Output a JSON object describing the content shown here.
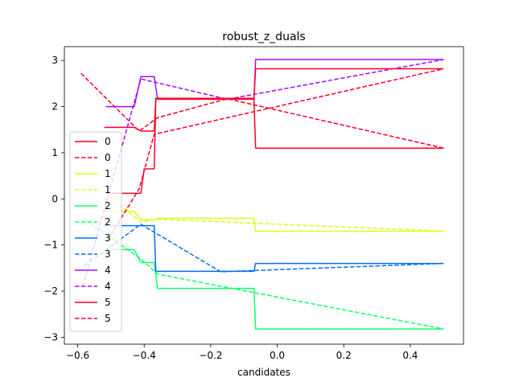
{
  "chart_data": {
    "type": "line",
    "title": "robust_z_duals",
    "xlabel": "candidates",
    "ylabel": "",
    "xlim": [
      -0.64,
      0.56
    ],
    "ylim": [
      -3.15,
      3.3
    ],
    "xticks": [
      -0.6,
      -0.4,
      -0.2,
      0.0,
      0.2,
      0.4
    ],
    "xtick_labels": [
      "−0.6",
      "−0.4",
      "−0.2",
      "0.0",
      "0.2",
      "0.4"
    ],
    "yticks": [
      -3,
      -2,
      -1,
      0,
      1,
      2,
      3
    ],
    "ytick_labels": [
      "−3",
      "−2",
      "−1",
      "0",
      "1",
      "2",
      "3"
    ],
    "grid": false,
    "legend_position": "center-left",
    "series": [
      {
        "name": "0",
        "color": "#ff0029",
        "dash": "solid",
        "x": [
          -0.52,
          -0.51,
          -0.43,
          -0.41,
          -0.39,
          -0.37,
          -0.365,
          -0.36,
          -0.07,
          -0.065,
          -0.06,
          0.5
        ],
        "y": [
          1.55,
          1.55,
          1.55,
          1.47,
          1.47,
          1.47,
          2.16,
          2.16,
          2.16,
          1.1,
          1.1,
          1.1
        ]
      },
      {
        "name": "0",
        "color": "#ff0029",
        "dash": "dashed",
        "x": [
          -0.59,
          -0.415,
          -0.36,
          -0.15,
          0.5
        ],
        "y": [
          2.72,
          1.47,
          1.76,
          2.17,
          1.1
        ]
      },
      {
        "name": "1",
        "color": "#d8ff1e",
        "dash": "solid",
        "x": [
          -0.52,
          -0.51,
          -0.43,
          -0.41,
          -0.39,
          -0.37,
          -0.36,
          -0.07,
          -0.065,
          0.5
        ],
        "y": [
          -0.27,
          -0.27,
          -0.27,
          -0.45,
          -0.45,
          -0.45,
          -0.42,
          -0.42,
          -0.7,
          -0.7
        ]
      },
      {
        "name": "1",
        "color": "#d8ff1e",
        "dash": "dashed",
        "x": [
          -0.52,
          -0.41,
          -0.36,
          0.5
        ],
        "y": [
          0.15,
          -0.5,
          -0.44,
          -0.7
        ]
      },
      {
        "name": "2",
        "color": "#13ff6b",
        "dash": "solid",
        "x": [
          -0.52,
          -0.51,
          -0.43,
          -0.41,
          -0.39,
          -0.37,
          -0.36,
          -0.07,
          -0.065,
          0.5
        ],
        "y": [
          -1.1,
          -1.1,
          -1.1,
          -1.38,
          -1.38,
          -1.38,
          -1.94,
          -1.94,
          -2.82,
          -2.82
        ]
      },
      {
        "name": "2",
        "color": "#13ff6b",
        "dash": "dashed",
        "x": [
          -0.58,
          -0.41,
          -0.36,
          0.5
        ],
        "y": [
          -0.44,
          -1.3,
          -1.63,
          -2.82
        ]
      },
      {
        "name": "3",
        "color": "#0070f2",
        "dash": "solid",
        "x": [
          -0.52,
          -0.51,
          -0.43,
          -0.41,
          -0.37,
          -0.365,
          -0.36,
          -0.07,
          -0.065,
          -0.06,
          0.5
        ],
        "y": [
          -0.58,
          -0.58,
          -0.58,
          -0.58,
          -0.58,
          -1.57,
          -1.57,
          -1.57,
          -1.4,
          -1.4,
          -1.4
        ]
      },
      {
        "name": "3",
        "color": "#0070f2",
        "dash": "dashed",
        "x": [
          -0.58,
          -0.41,
          -0.17,
          0.5
        ],
        "y": [
          -1.45,
          -0.55,
          -1.58,
          -1.4
        ]
      },
      {
        "name": "4",
        "color": "#a60cff",
        "dash": "solid",
        "x": [
          -0.515,
          -0.51,
          -0.43,
          -0.41,
          -0.39,
          -0.37,
          -0.36,
          -0.07,
          -0.065,
          0.5
        ],
        "y": [
          2.0,
          2.0,
          2.0,
          2.65,
          2.65,
          2.65,
          2.18,
          2.18,
          3.02,
          3.02
        ]
      },
      {
        "name": "4",
        "color": "#a60cff",
        "dash": "dashed",
        "x": [
          -0.585,
          -0.41,
          -0.15,
          0.5
        ],
        "y": [
          -1.9,
          2.6,
          2.16,
          3.02
        ]
      },
      {
        "name": "5",
        "color": "#ff0029",
        "dash": "solid",
        "x": [
          -0.51,
          -0.43,
          -0.41,
          -0.4,
          -0.37,
          -0.365,
          -0.36,
          -0.07,
          -0.065,
          -0.06,
          0.5
        ],
        "y": [
          0.12,
          0.12,
          0.12,
          0.65,
          0.65,
          2.18,
          2.18,
          2.18,
          2.82,
          2.82,
          2.82
        ]
      },
      {
        "name": "5",
        "color": "#ff0029",
        "dash": "dashed",
        "x": [
          -0.51,
          -0.415,
          -0.37,
          0.5
        ],
        "y": [
          -0.9,
          0.22,
          1.4,
          2.82
        ]
      }
    ]
  }
}
